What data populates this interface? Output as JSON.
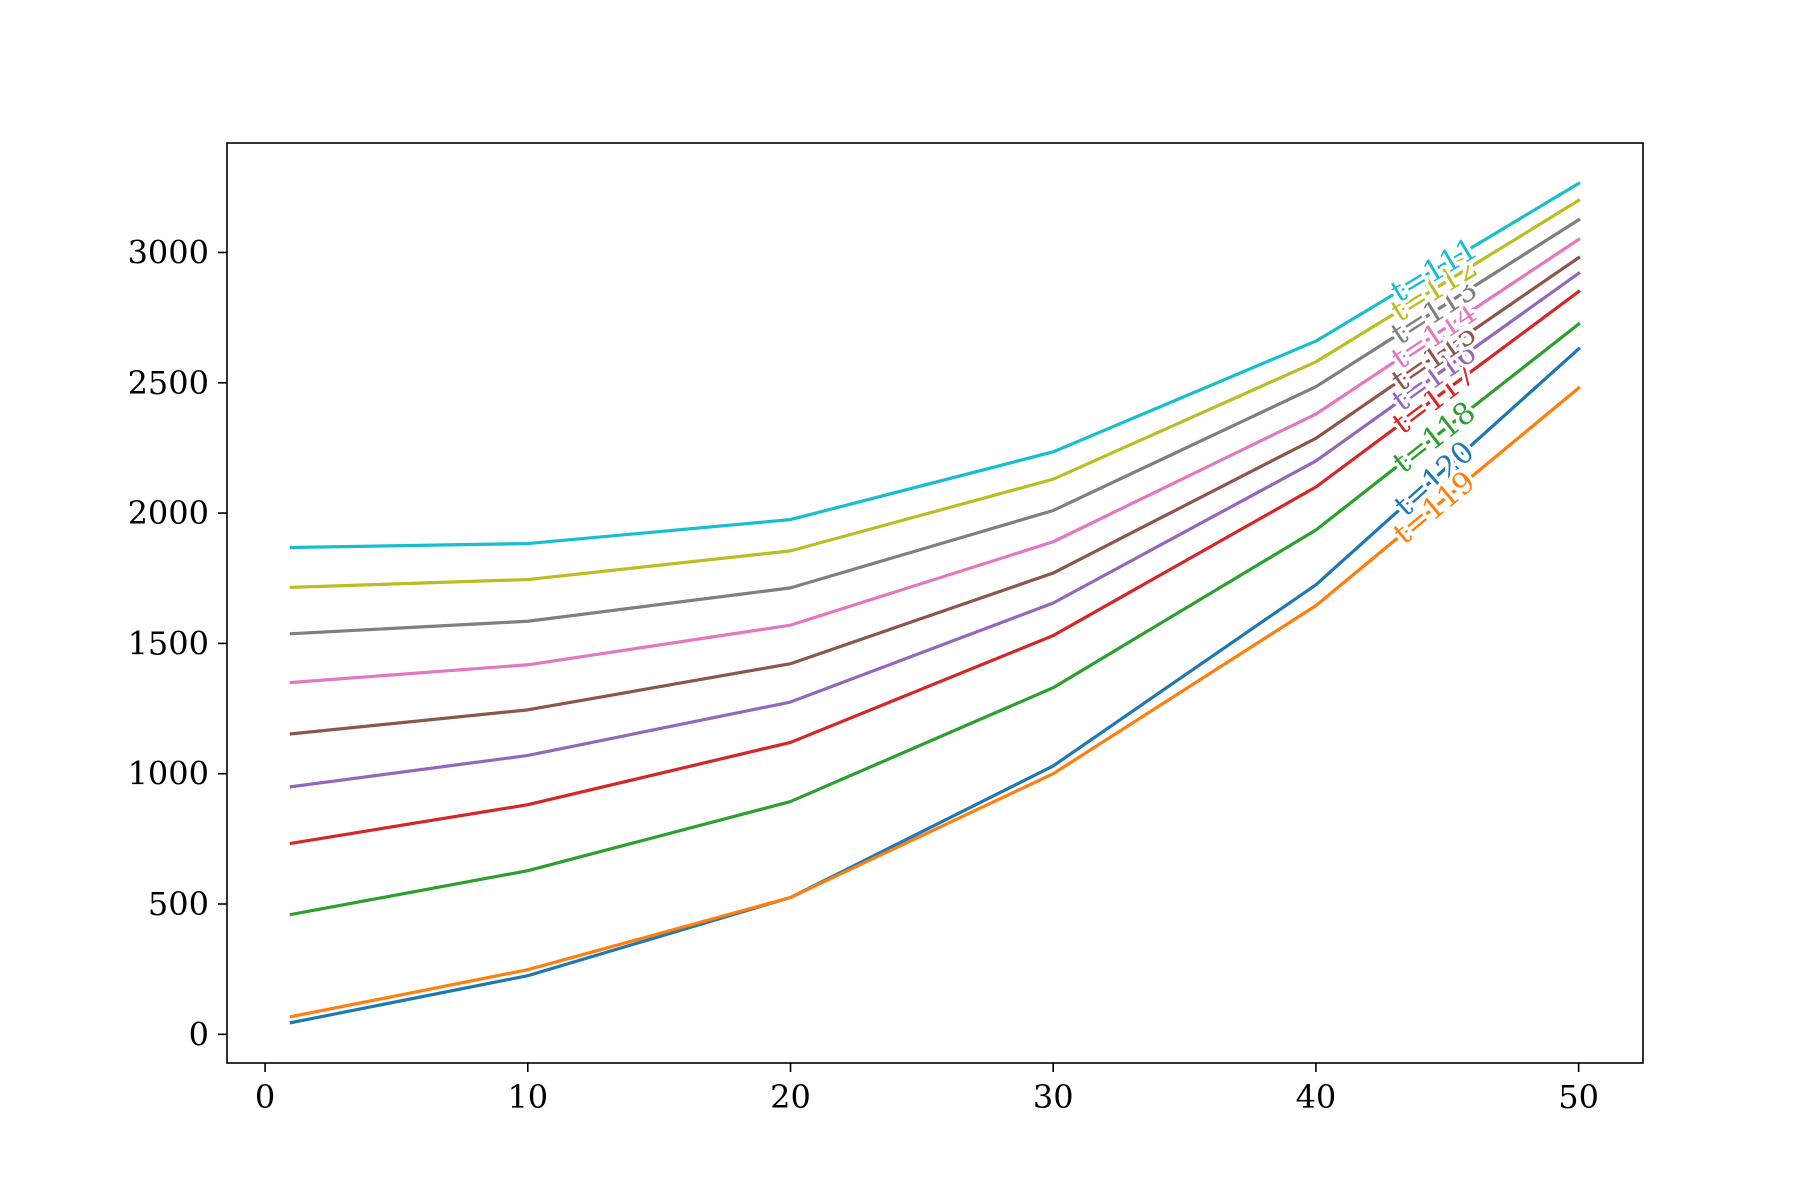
{
  "chart_data": {
    "type": "line",
    "title": "",
    "xlabel": "",
    "ylabel": "",
    "x": [
      1,
      10,
      20,
      30,
      40,
      50
    ],
    "xlim": [
      -1.45,
      52.45
    ],
    "ylim": [
      -110,
      3420
    ],
    "x_ticks": [
      0,
      10,
      20,
      30,
      40,
      50
    ],
    "x_tick_labels": [
      "0",
      "10",
      "20",
      "30",
      "40",
      "50"
    ],
    "y_ticks": [
      0,
      500,
      1000,
      1500,
      2000,
      2500,
      3000
    ],
    "y_tick_labels": [
      "0",
      "500",
      "1000",
      "1500",
      "2000",
      "2500",
      "3000"
    ],
    "grid": false,
    "legend": "none",
    "inline_labels_at_x": 44.5,
    "series": [
      {
        "name": "t=120",
        "color": "#1f77b4",
        "values": [
          45,
          225,
          525,
          1030,
          1725,
          2630
        ]
      },
      {
        "name": "t=119",
        "color": "#ff7f0e",
        "values": [
          68,
          248,
          525,
          1000,
          1645,
          2480
        ]
      },
      {
        "name": "t=118",
        "color": "#2ca02c",
        "values": [
          460,
          628,
          893,
          1330,
          1935,
          2725
        ]
      },
      {
        "name": "t=117",
        "color": "#d62728",
        "values": [
          733,
          881,
          1120,
          1530,
          2100,
          2850
        ]
      },
      {
        "name": "t=116",
        "color": "#9467bd",
        "values": [
          950,
          1070,
          1275,
          1655,
          2200,
          2920
        ]
      },
      {
        "name": "t=115",
        "color": "#8c564b",
        "values": [
          1153,
          1245,
          1422,
          1770,
          2287,
          2980
        ]
      },
      {
        "name": "t=114",
        "color": "#e377c2",
        "values": [
          1350,
          1418,
          1570,
          1890,
          2380,
          3050
        ]
      },
      {
        "name": "t=113",
        "color": "#7f7f7f",
        "values": [
          1537,
          1585,
          1713,
          2010,
          2485,
          3125
        ]
      },
      {
        "name": "t=112",
        "color": "#bcbd22",
        "values": [
          1715,
          1745,
          1855,
          2130,
          2580,
          3200
        ]
      },
      {
        "name": "t=111",
        "color": "#17becf",
        "values": [
          1868,
          1883,
          1975,
          2235,
          2660,
          3265
        ]
      }
    ]
  }
}
